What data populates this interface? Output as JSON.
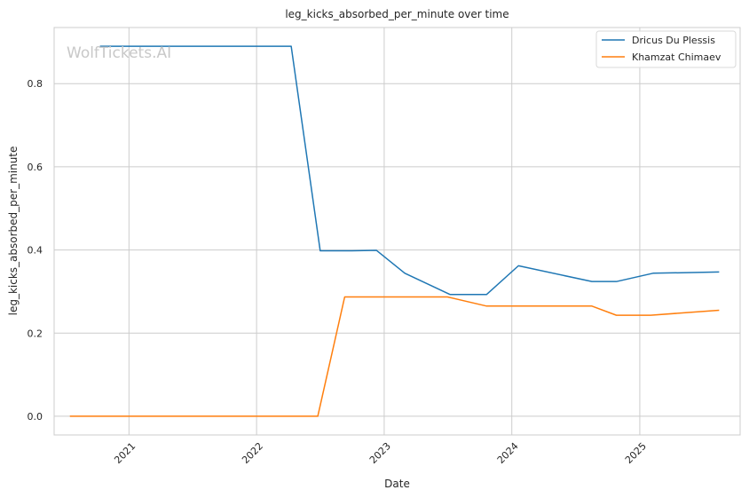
{
  "chart_data": {
    "type": "line",
    "title": "leg_kicks_absorbed_per_minute over time",
    "xlabel": "Date",
    "ylabel": "leg_kicks_absorbed_per_minute",
    "watermark": "WolfTickets.AI",
    "x_ticks": [
      "2021",
      "2022",
      "2023",
      "2024",
      "2025"
    ],
    "y_ticks": [
      "0.0",
      "0.2",
      "0.4",
      "0.6",
      "0.8"
    ],
    "xlim": [
      "2020-06-01",
      "2025-10-15"
    ],
    "ylim": [
      -0.045,
      0.935
    ],
    "grid": true,
    "legend_position": "top-right",
    "series": [
      {
        "name": "Dricus Du Plessis",
        "color": "#1f77b4",
        "points": [
          [
            "2020-10-10",
            0.89
          ],
          [
            "2022-04-10",
            0.89
          ],
          [
            "2022-07-02",
            0.398
          ],
          [
            "2022-10-01",
            0.398
          ],
          [
            "2022-12-10",
            0.399
          ],
          [
            "2023-03-01",
            0.344
          ],
          [
            "2023-07-08",
            0.293
          ],
          [
            "2023-10-21",
            0.293
          ],
          [
            "2024-01-20",
            0.362
          ],
          [
            "2024-08-17",
            0.324
          ],
          [
            "2024-10-26",
            0.324
          ],
          [
            "2025-02-08",
            0.344
          ],
          [
            "2025-08-16",
            0.347
          ]
        ]
      },
      {
        "name": "Khamzat Chimaev",
        "color": "#ff7f0e",
        "points": [
          [
            "2020-07-16",
            0.0
          ],
          [
            "2022-06-25",
            0.0
          ],
          [
            "2022-09-10",
            0.287
          ],
          [
            "2023-07-01",
            0.287
          ],
          [
            "2023-10-21",
            0.265
          ],
          [
            "2024-08-17",
            0.265
          ],
          [
            "2024-10-26",
            0.243
          ],
          [
            "2025-02-01",
            0.243
          ],
          [
            "2025-08-16",
            0.255
          ]
        ]
      }
    ]
  }
}
